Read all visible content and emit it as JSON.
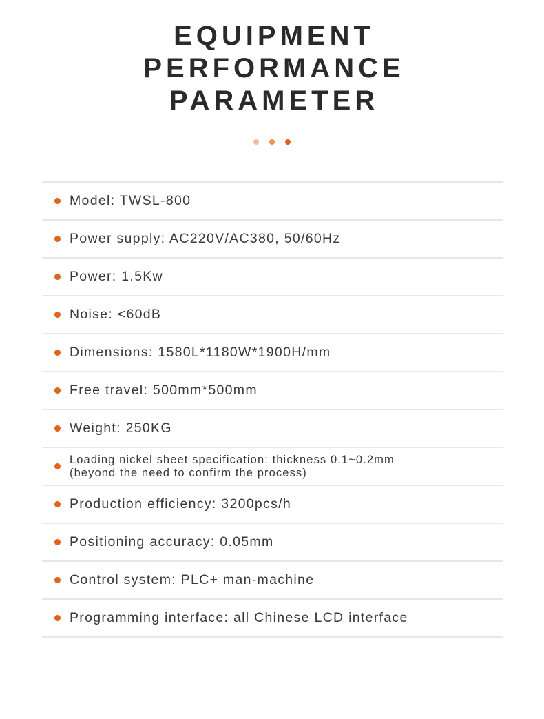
{
  "header": {
    "title_lines": [
      "EQUIPMENT",
      "PERFORMANCE",
      "PARAMETER"
    ],
    "title_color": "#2a2a2e",
    "divider_dots": [
      {
        "name": "divider-dot-light",
        "color": "#eebc9e"
      },
      {
        "name": "divider-dot-medium",
        "color": "#ec9150"
      },
      {
        "name": "divider-dot-dark",
        "color": "#e0611c"
      }
    ]
  },
  "specs": {
    "accent_color": "#e2631a",
    "divider_color": "#e7e7e7",
    "items": [
      {
        "text": "Model: TWSL-800"
      },
      {
        "text": "Power supply: AC220V/AC380, 50/60Hz"
      },
      {
        "text": "Power: 1.5Kw"
      },
      {
        "text": "Noise: <60dB"
      },
      {
        "text": "Dimensions: 1580L*1180W*1900H/mm"
      },
      {
        "text": "Free travel: 500mm*500mm"
      },
      {
        "text": "Weight: 250KG"
      },
      {
        "text": "Loading nickel sheet specification: thickness 0.1~0.2mm\n(beyond the need to confirm the process)",
        "small": true
      },
      {
        "text": "Production efficiency: 3200pcs/h"
      },
      {
        "text": "Positioning accuracy: 0.05mm"
      },
      {
        "text": "Control system: PLC+ man-machine"
      },
      {
        "text": "Programming interface: all Chinese LCD interface"
      }
    ]
  }
}
